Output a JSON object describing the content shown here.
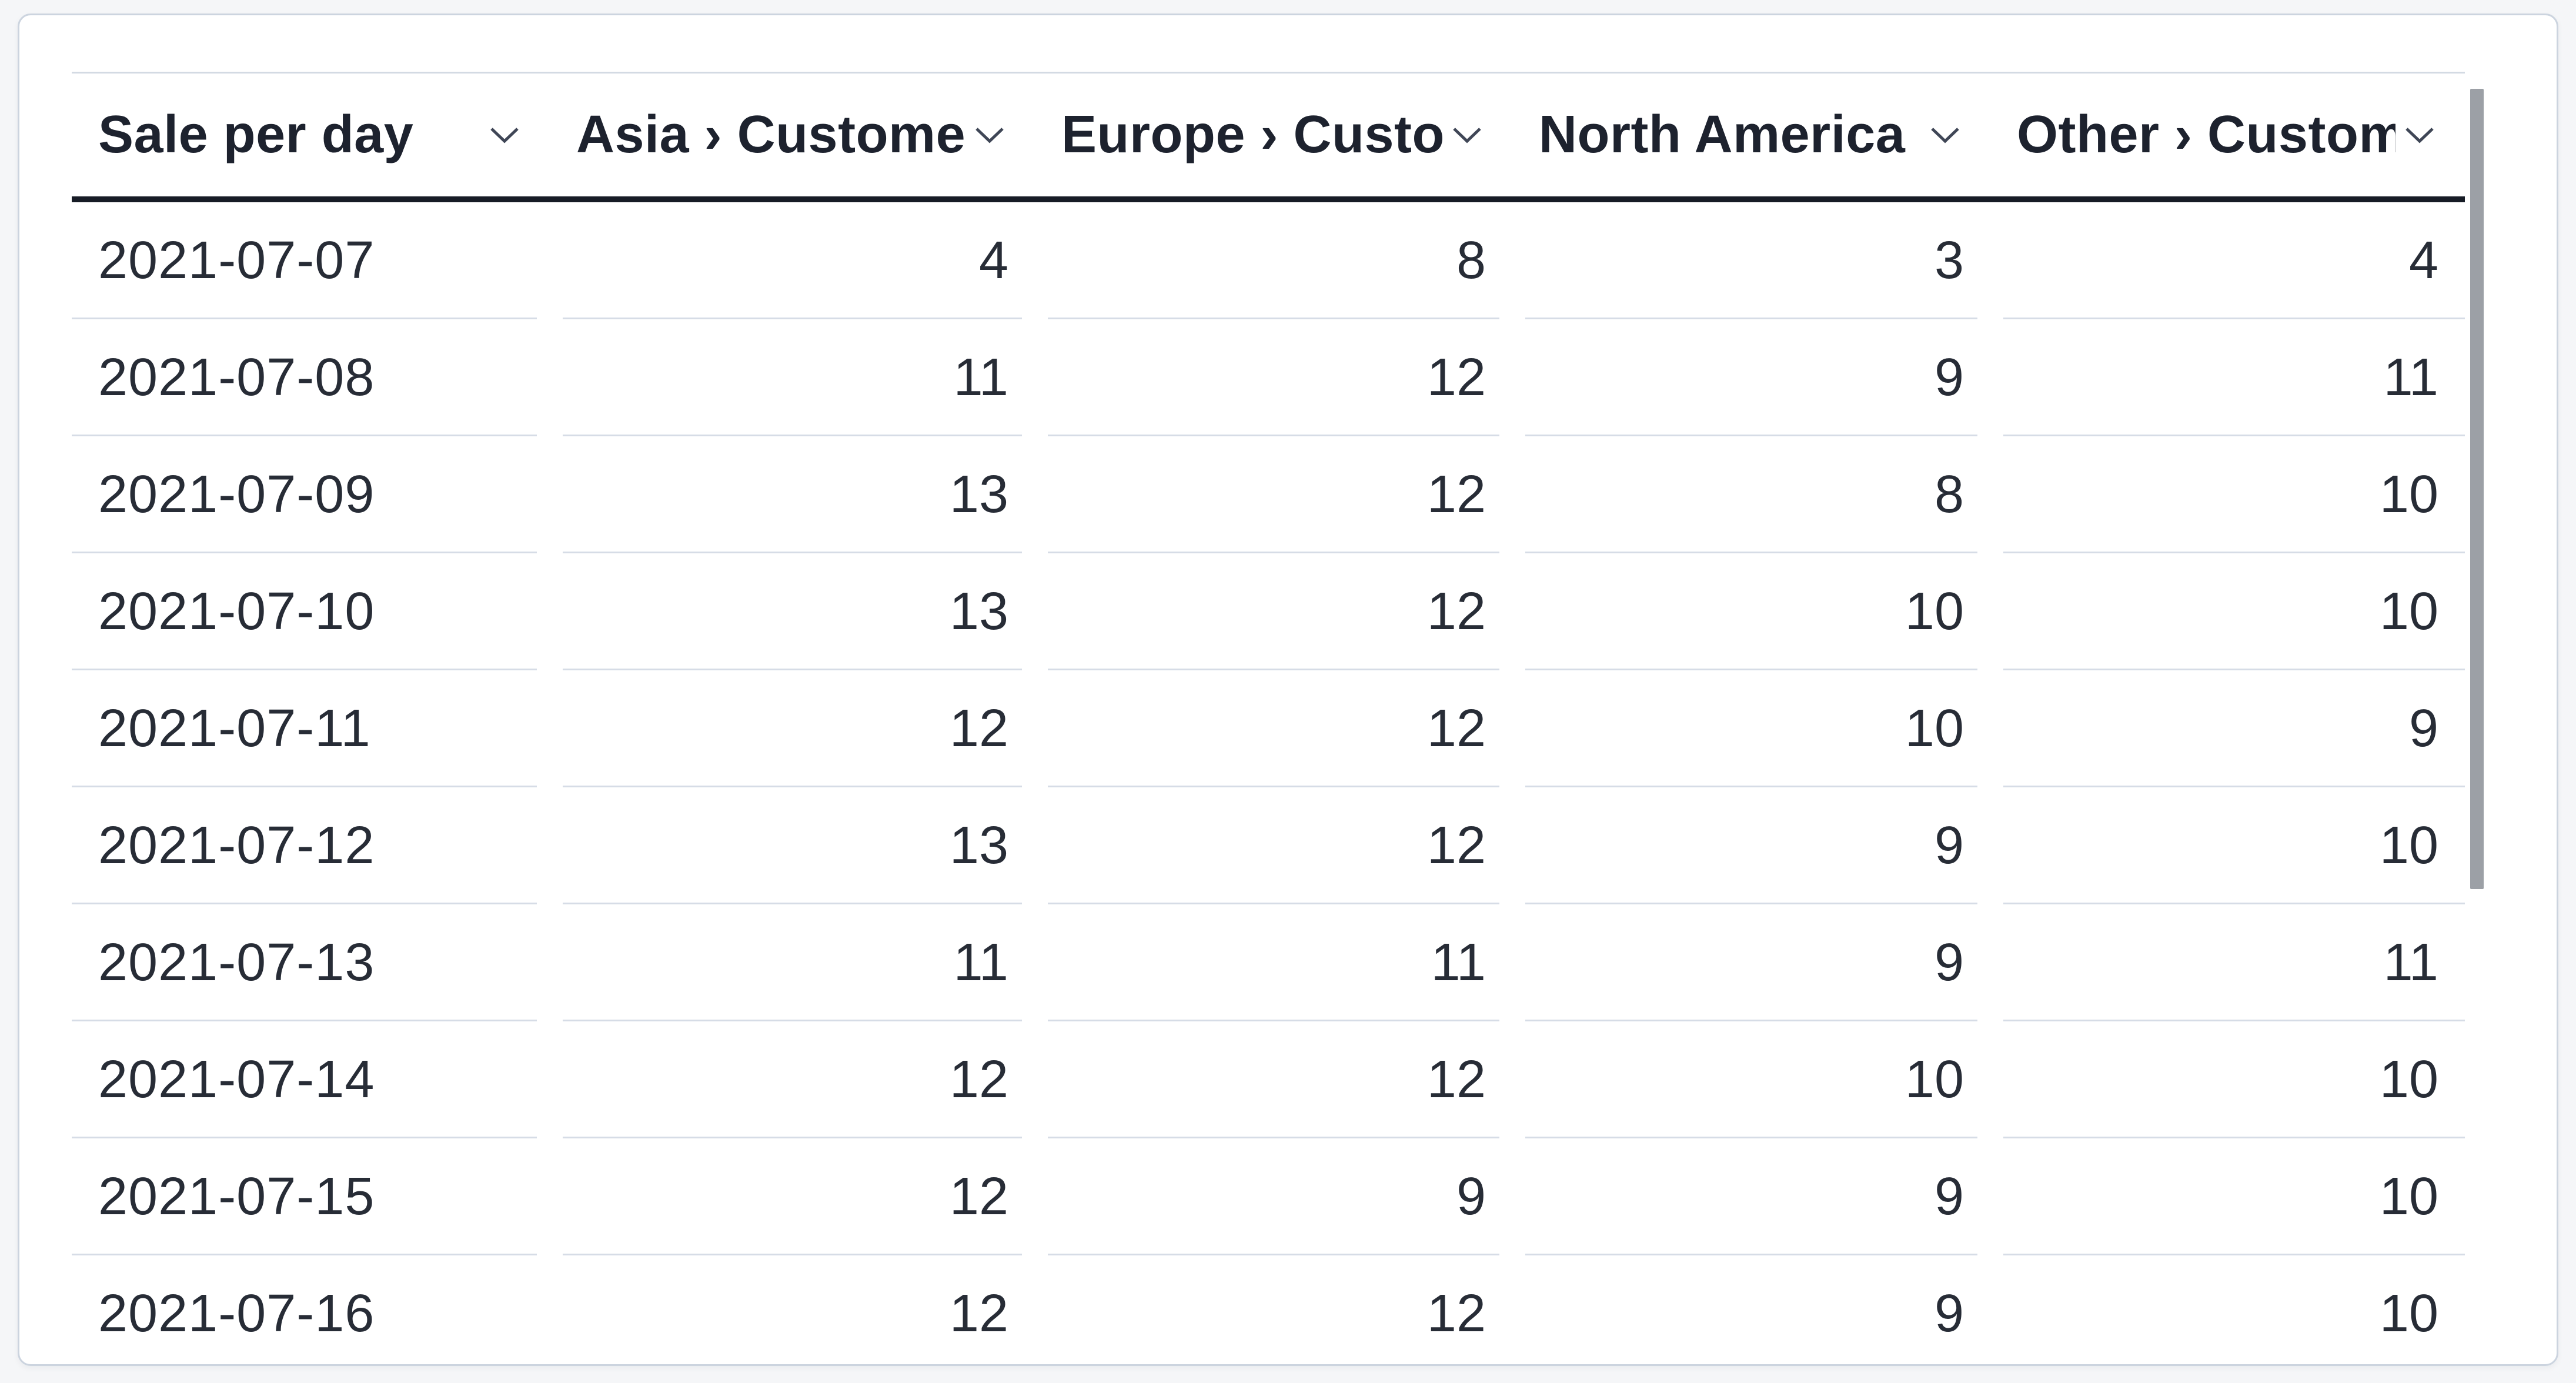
{
  "table": {
    "columns": [
      {
        "id": "sale_per_day",
        "label": "Sale per day"
      },
      {
        "id": "asia_customers",
        "label": "Asia › Customers"
      },
      {
        "id": "europe_customers",
        "label": "Europe › Customers"
      },
      {
        "id": "north_america_customers",
        "label": "North America › Customers"
      },
      {
        "id": "other_customers",
        "label": "Other › Customers"
      }
    ],
    "rows": [
      {
        "date": "2021-07-07",
        "values": [
          4,
          8,
          3,
          4
        ]
      },
      {
        "date": "2021-07-08",
        "values": [
          11,
          12,
          9,
          11
        ]
      },
      {
        "date": "2021-07-09",
        "values": [
          13,
          12,
          8,
          10
        ]
      },
      {
        "date": "2021-07-10",
        "values": [
          13,
          12,
          10,
          10
        ]
      },
      {
        "date": "2021-07-11",
        "values": [
          12,
          12,
          10,
          9
        ]
      },
      {
        "date": "2021-07-12",
        "values": [
          13,
          12,
          9,
          10
        ]
      },
      {
        "date": "2021-07-13",
        "values": [
          11,
          11,
          9,
          11
        ]
      },
      {
        "date": "2021-07-14",
        "values": [
          12,
          12,
          10,
          10
        ]
      },
      {
        "date": "2021-07-15",
        "values": [
          12,
          9,
          9,
          10
        ]
      },
      {
        "date": "2021-07-16",
        "values": [
          12,
          12,
          9,
          10
        ]
      }
    ]
  },
  "icons": {
    "column_header": "chevron-down-icon"
  },
  "colors": {
    "page_background": "#f5f6f8",
    "card_background": "#ffffff",
    "card_border": "#ccd4df",
    "table_top_border": "#d3dae3",
    "header_underline": "#171c26",
    "header_text": "#1d222e",
    "cell_text": "#272c36",
    "row_divider": "#d6dce6",
    "chevron": "#3f4656",
    "scrollbar_thumb": "#9ca0a6"
  },
  "chart_data": {
    "type": "table",
    "title": "Sale per day",
    "categories": [
      "2021-07-07",
      "2021-07-08",
      "2021-07-09",
      "2021-07-10",
      "2021-07-11",
      "2021-07-12",
      "2021-07-13",
      "2021-07-14",
      "2021-07-15",
      "2021-07-16"
    ],
    "series": [
      {
        "name": "Asia › Customers",
        "values": [
          4,
          11,
          13,
          13,
          12,
          13,
          11,
          12,
          12,
          12
        ]
      },
      {
        "name": "Europe › Customers",
        "values": [
          8,
          12,
          12,
          12,
          12,
          12,
          11,
          12,
          9,
          12
        ]
      },
      {
        "name": "North America › Customers",
        "values": [
          3,
          9,
          8,
          10,
          10,
          9,
          9,
          10,
          9,
          9
        ]
      },
      {
        "name": "Other › Customers",
        "values": [
          4,
          11,
          10,
          10,
          9,
          10,
          11,
          10,
          10,
          10
        ]
      }
    ]
  }
}
